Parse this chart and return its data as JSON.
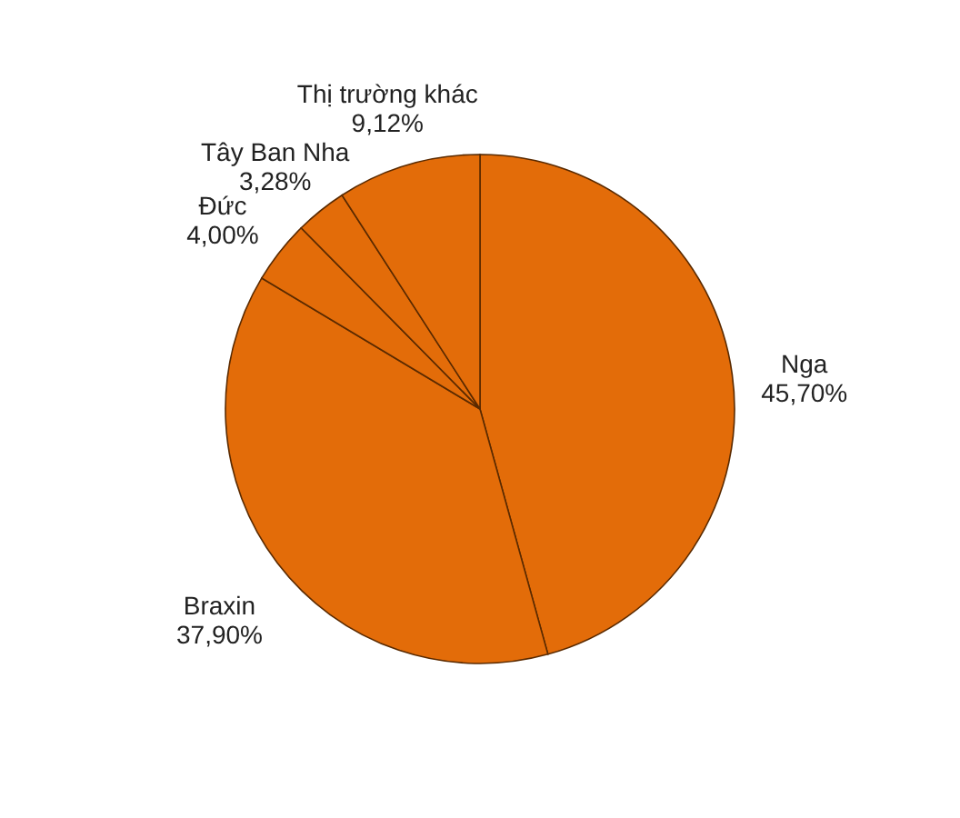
{
  "chart_data": {
    "type": "pie",
    "categories": [
      "Nga",
      "Braxin",
      "Đức",
      "Tây Ban Nha",
      "Thị trường khác"
    ],
    "values": [
      45.7,
      37.9,
      4.0,
      3.28,
      9.12
    ],
    "value_labels": [
      "45,70%",
      "37,90%",
      "4,00%",
      "3,28%",
      "9,12%"
    ],
    "colors": [
      "#e36c09",
      "#e36c09",
      "#e36c09",
      "#e36c09",
      "#e36c09"
    ],
    "legend": false
  }
}
